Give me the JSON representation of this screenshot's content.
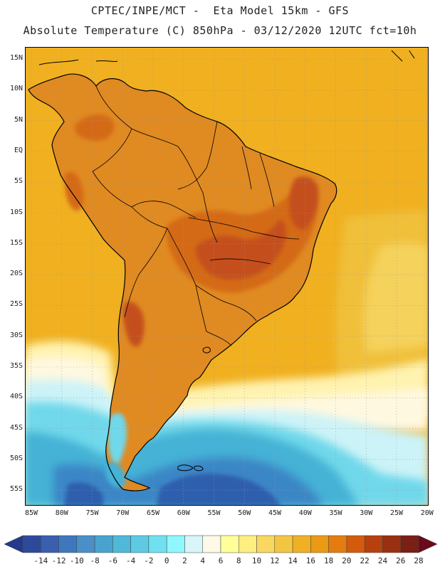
{
  "title": {
    "line1": "CPTEC/INPE/MCT -  Eta Model 15km - GFS",
    "line2": "Absolute Temperature (C) 850hPa - 03/12/2020 12UTC fct=10h"
  },
  "axes": {
    "lat_labels": [
      "15N",
      "10N",
      "5N",
      "EQ",
      "5S",
      "10S",
      "15S",
      "20S",
      "25S",
      "30S",
      "35S",
      "40S",
      "45S",
      "50S",
      "55S"
    ],
    "lon_labels": [
      "85W",
      "80W",
      "75W",
      "70W",
      "65W",
      "60W",
      "55W",
      "50W",
      "45W",
      "40W",
      "35W",
      "30W",
      "25W",
      "20W"
    ]
  },
  "colorbar": {
    "labels": [
      "-14",
      "-12",
      "-10",
      "-8",
      "-6",
      "-4",
      "-2",
      "0",
      "2",
      "4",
      "6",
      "8",
      "10",
      "12",
      "14",
      "16",
      "18",
      "20",
      "22",
      "24",
      "26",
      "28"
    ],
    "low_color": "#233a8c",
    "high_color": "#6b0a1a",
    "colors": [
      "#2d4a9a",
      "#3a5fae",
      "#3f77bd",
      "#4a8fc8",
      "#4aa3cf",
      "#50b8d8",
      "#5ccae2",
      "#70e0ee",
      "#8ff7ff",
      "#d8f5f8",
      "#fef9e6",
      "#ffff9a",
      "#ffee80",
      "#f8d860",
      "#f2c640",
      "#efb025",
      "#ea9a14",
      "#e47c10",
      "#d45a0e",
      "#b8400e",
      "#993012",
      "#7a1f14"
    ]
  },
  "map": {
    "colors": {
      "ocean_warm": "#f0b020",
      "ocean_mid": "#f0c03a",
      "ocean_light": "#f5d25c",
      "land_base": "#e08a22",
      "land_hot": "#d46a18",
      "land_hotter": "#c4501a",
      "pale_yellow": "#fff3b0",
      "cream": "#fff8e0",
      "ice": "#ccf3f8",
      "cyan": "#6fd8ea",
      "blue_mid": "#45b2d6",
      "blue_dark": "#3a86c6",
      "blue_deep": "#2f5fae",
      "coast": "#000000",
      "grid": "#9a9a9a"
    }
  }
}
